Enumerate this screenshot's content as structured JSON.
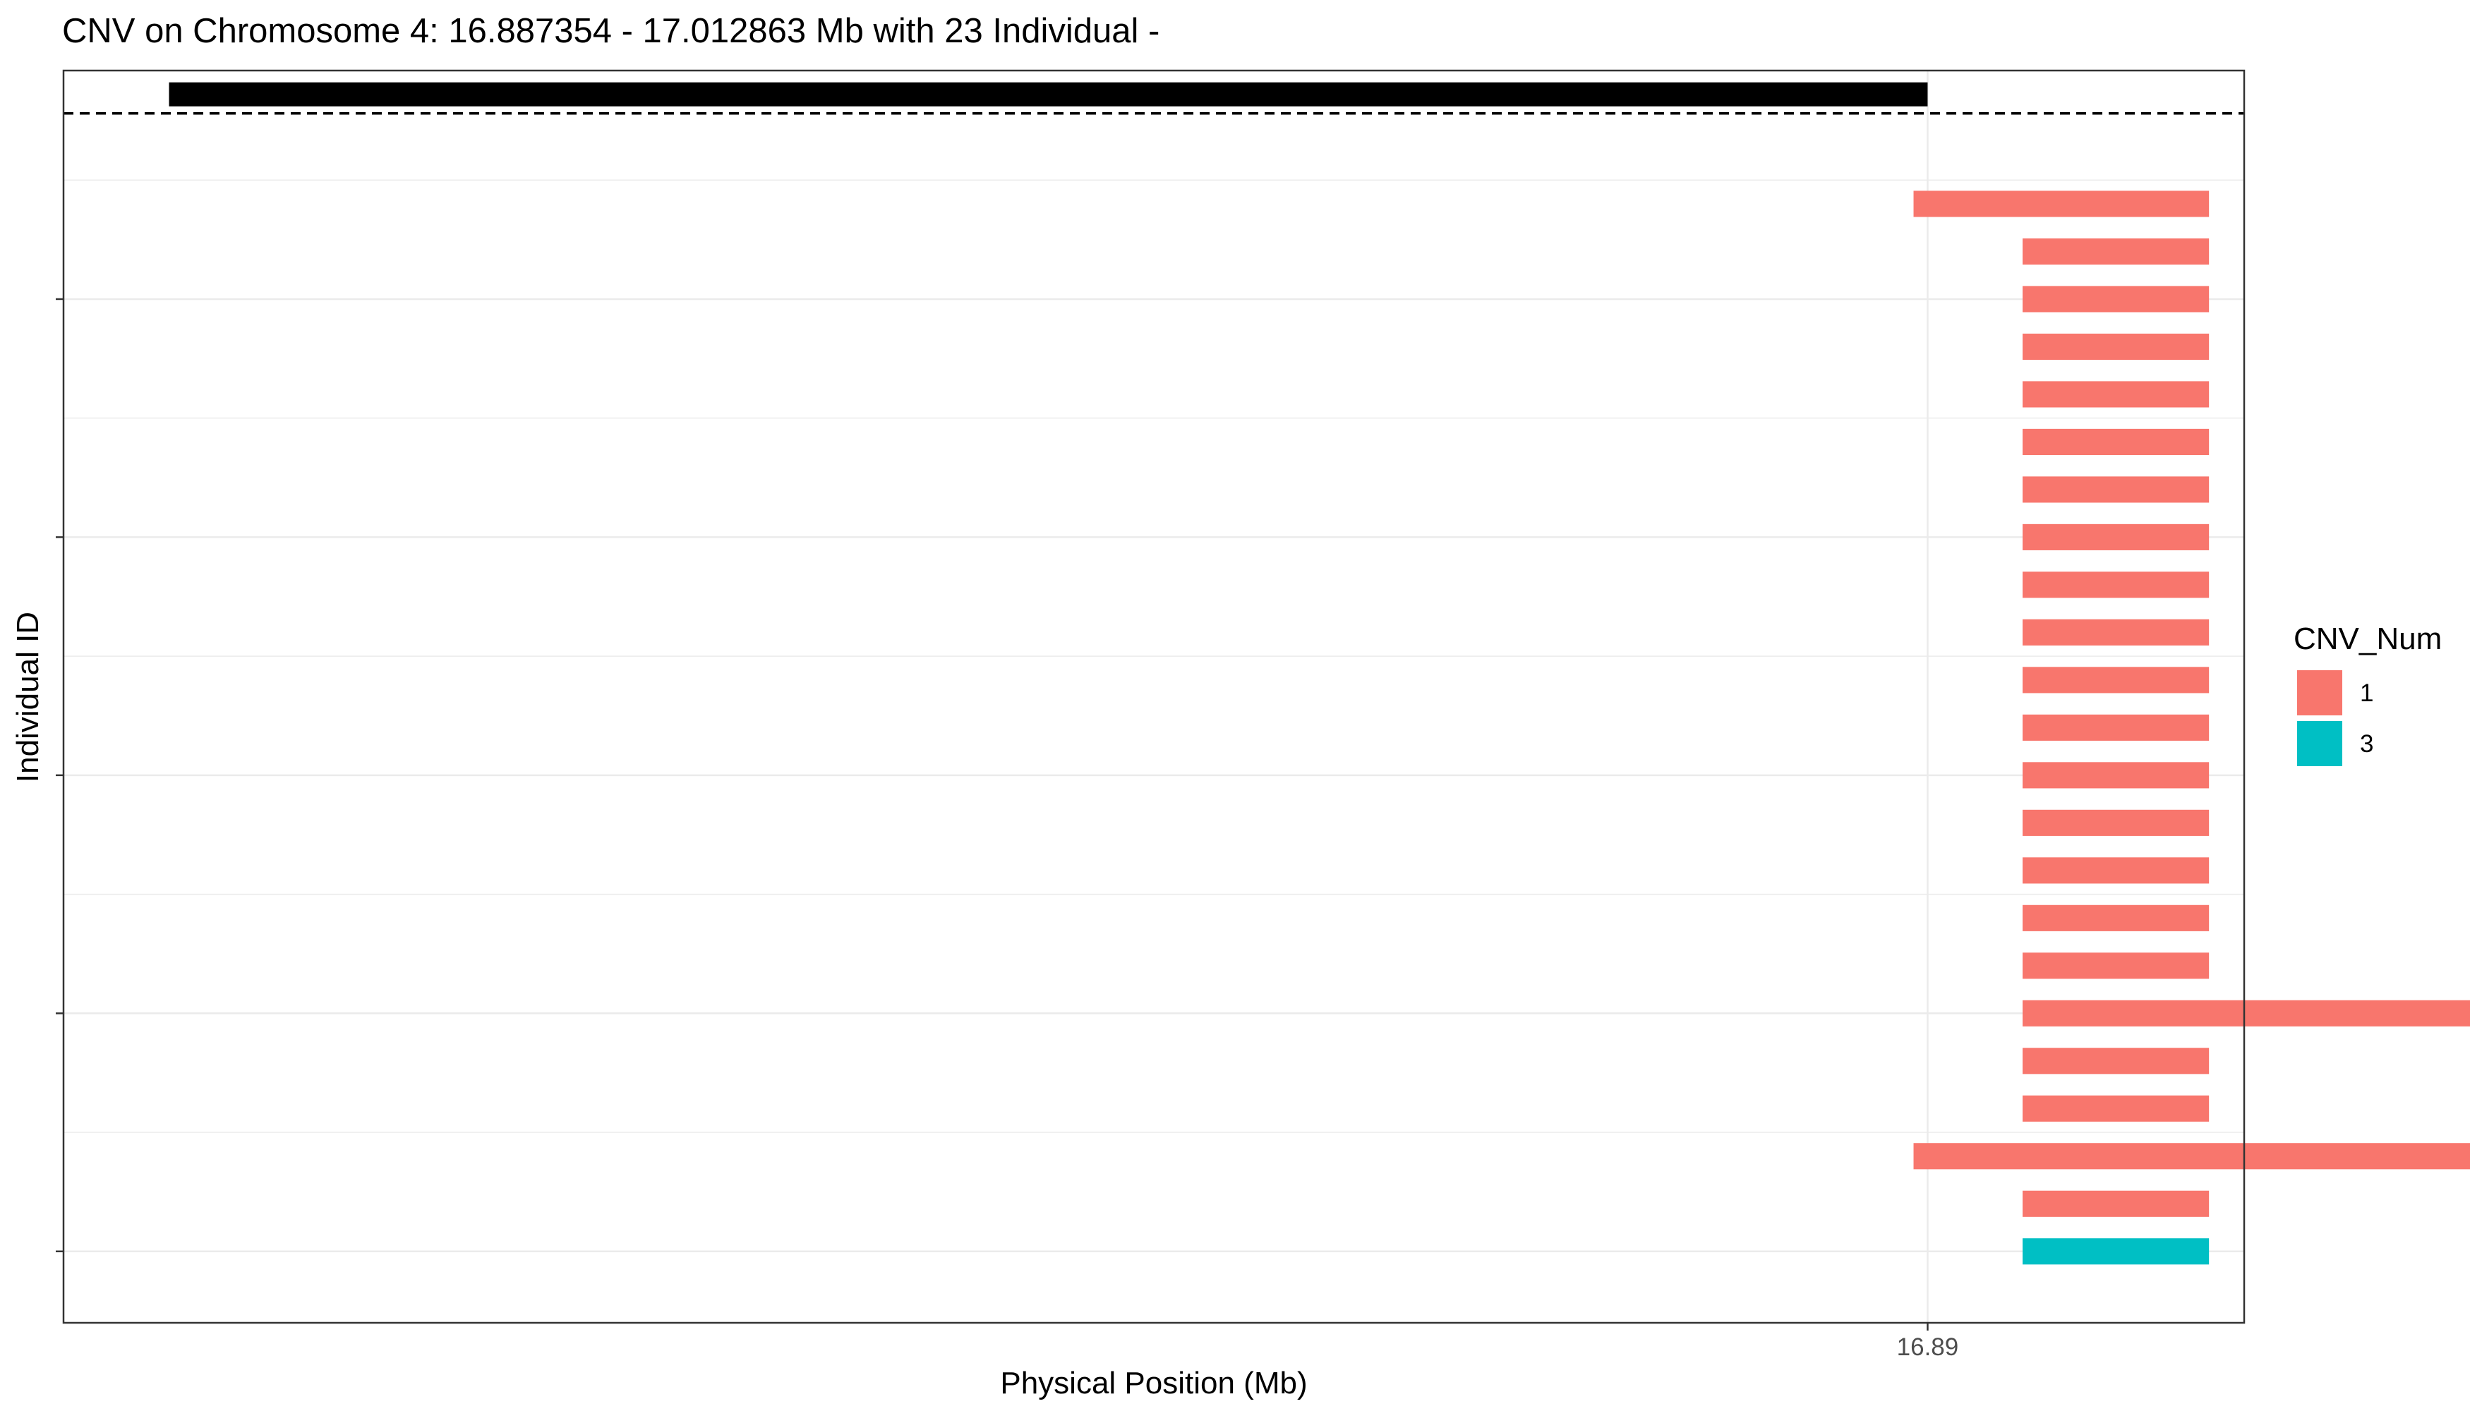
{
  "chart_data": {
    "type": "bar",
    "title": "CNV on Chromosome 4: 16.887354 - 17.012863 Mb with 23 Individual -",
    "xlabel": "Physical Position (Mb)",
    "ylabel": "Individual ID",
    "x_ticks": [
      16.89
    ],
    "x_tick_labels": [
      "16.89"
    ],
    "xlim": [
      16.8847,
      16.8909
    ],
    "ylim": [
      0.5,
      26.8
    ],
    "grid": true,
    "legend": {
      "title": "CNV_Num",
      "position": "right",
      "entries": [
        {
          "label": "1",
          "color": "#F8766D"
        },
        {
          "label": "3",
          "color": "#00BFC4"
        }
      ]
    },
    "reference_segment": {
      "start": 16.885,
      "end": 16.89,
      "row": 26.3,
      "color": "#000000"
    },
    "dashed_line_row": 25.9,
    "individuals": [
      {
        "row": 24,
        "start": 16.88996,
        "end": 16.8908,
        "cnv": "1"
      },
      {
        "row": 23,
        "start": 16.89027,
        "end": 16.8908,
        "cnv": "1"
      },
      {
        "row": 22,
        "start": 16.89027,
        "end": 16.8908,
        "cnv": "1"
      },
      {
        "row": 21,
        "start": 16.89027,
        "end": 16.8908,
        "cnv": "1"
      },
      {
        "row": 20,
        "start": 16.89027,
        "end": 16.8908,
        "cnv": "1"
      },
      {
        "row": 19,
        "start": 16.89027,
        "end": 16.8908,
        "cnv": "1"
      },
      {
        "row": 18,
        "start": 16.89027,
        "end": 16.8908,
        "cnv": "1"
      },
      {
        "row": 17,
        "start": 16.89027,
        "end": 16.8908,
        "cnv": "1"
      },
      {
        "row": 16,
        "start": 16.89027,
        "end": 16.8908,
        "cnv": "1"
      },
      {
        "row": 15,
        "start": 16.89027,
        "end": 16.8908,
        "cnv": "1"
      },
      {
        "row": 14,
        "start": 16.89027,
        "end": 16.8908,
        "cnv": "1"
      },
      {
        "row": 13,
        "start": 16.89027,
        "end": 16.8908,
        "cnv": "1"
      },
      {
        "row": 12,
        "start": 16.89027,
        "end": 16.8908,
        "cnv": "1"
      },
      {
        "row": 11,
        "start": 16.89027,
        "end": 16.8908,
        "cnv": "1"
      },
      {
        "row": 10,
        "start": 16.89027,
        "end": 16.8908,
        "cnv": "1"
      },
      {
        "row": 9,
        "start": 16.89027,
        "end": 16.8908,
        "cnv": "1"
      },
      {
        "row": 8,
        "start": 16.89027,
        "end": 16.8908,
        "cnv": "1"
      },
      {
        "row": 7,
        "start": 16.89027,
        "end": 16.89167,
        "cnv": "1"
      },
      {
        "row": 6,
        "start": 16.89027,
        "end": 16.8908,
        "cnv": "1"
      },
      {
        "row": 5,
        "start": 16.89027,
        "end": 16.8908,
        "cnv": "1"
      },
      {
        "row": 4,
        "start": 16.88996,
        "end": 16.89167,
        "cnv": "1"
      },
      {
        "row": 3,
        "start": 16.89027,
        "end": 16.8908,
        "cnv": "1"
      },
      {
        "row": 2,
        "start": 16.89027,
        "end": 16.8908,
        "cnv": "3"
      }
    ],
    "y_ticks": [
      2,
      7,
      12,
      17,
      22
    ]
  }
}
